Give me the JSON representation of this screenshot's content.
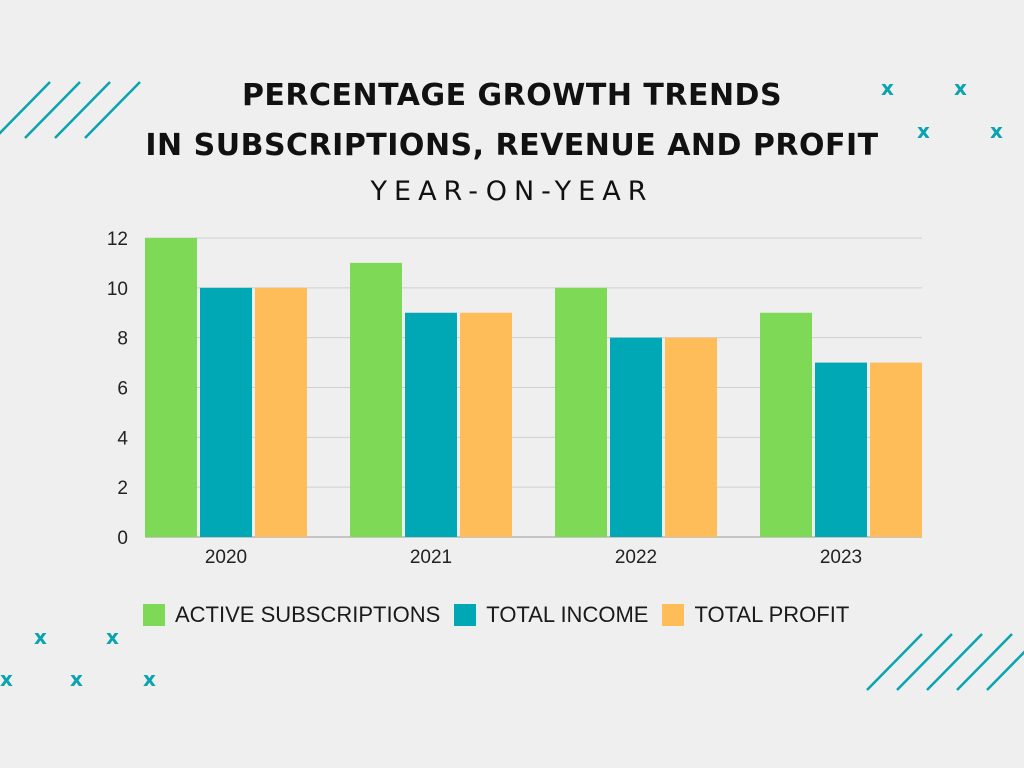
{
  "colors": {
    "background": "#efefef",
    "active": "#7ed957",
    "income": "#00a8b5",
    "profit": "#ffbd59",
    "accent": "#0aa3b0"
  },
  "decorations": {
    "x_mark": "x",
    "stripe_icon": "diagonal-stripes-icon"
  },
  "chart_data": {
    "type": "bar",
    "title": "PERCENTAGE GROWTH TRENDS",
    "title_line2": "IN SUBSCRIPTIONS, REVENUE AND PROFIT",
    "subtitle": "YEAR-ON-YEAR",
    "xlabel": "",
    "ylabel": "",
    "categories": [
      "2020",
      "2021",
      "2022",
      "2023"
    ],
    "ylim": [
      0,
      12
    ],
    "yticks": [
      0,
      2,
      4,
      6,
      8,
      10,
      12
    ],
    "grid": true,
    "legend_position": "bottom-left",
    "series": [
      {
        "name": "ACTIVE SUBSCRIPTIONS",
        "color": "#7ed957",
        "values": [
          12,
          11,
          10,
          9
        ]
      },
      {
        "name": "TOTAL INCOME",
        "color": "#00a8b5",
        "values": [
          10,
          9,
          8,
          7
        ]
      },
      {
        "name": "TOTAL PROFIT",
        "color": "#ffbd59",
        "values": [
          10,
          9,
          8,
          7
        ]
      }
    ]
  }
}
